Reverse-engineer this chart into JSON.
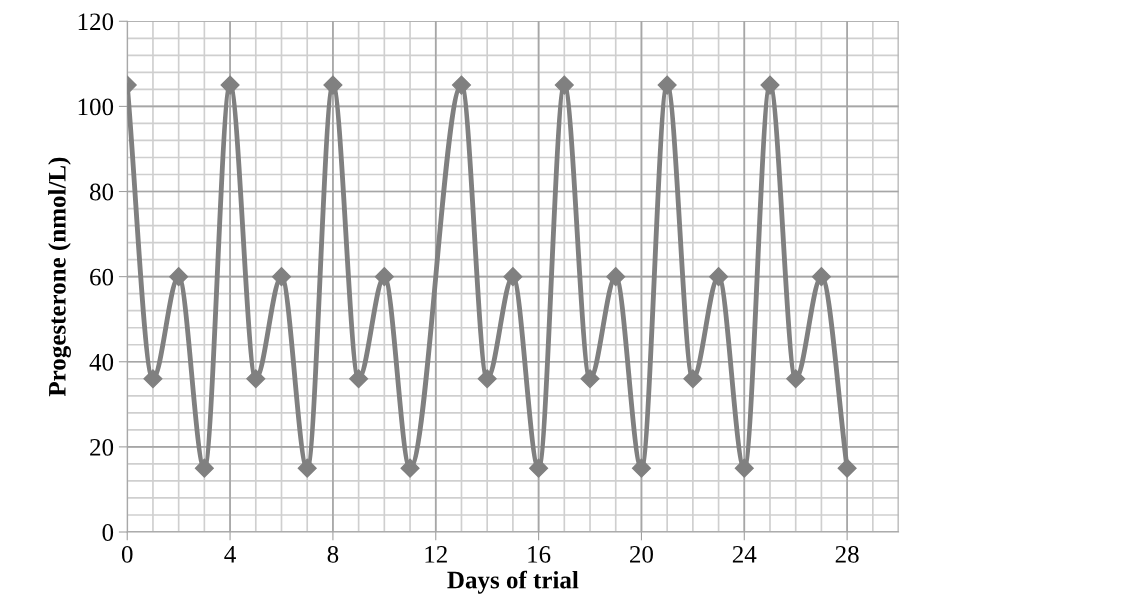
{
  "chart_data": {
    "type": "line",
    "xlabel": "Days of trial",
    "ylabel": "Progesterone (nmol/L)",
    "x": [
      0,
      1,
      2,
      3,
      4,
      5,
      6,
      7,
      8,
      9,
      10,
      11,
      13,
      14,
      15,
      16,
      17,
      18,
      19,
      20,
      21,
      22,
      23,
      24,
      25,
      26,
      27,
      28
    ],
    "series": [
      {
        "color": "#808080",
        "values": [
          105,
          36,
          60,
          15,
          105,
          36,
          60,
          15,
          105,
          36,
          60,
          15,
          105,
          36,
          60,
          15,
          105,
          36,
          60,
          15,
          105,
          36,
          60,
          15,
          105,
          36,
          60,
          15
        ]
      }
    ],
    "xlim": [
      0,
      30
    ],
    "xticks": [
      0,
      4,
      8,
      12,
      16,
      20,
      24,
      28
    ],
    "ylim": [
      0,
      120
    ],
    "yticks": [
      0,
      20,
      40,
      60,
      80,
      100,
      120
    ],
    "grid": true,
    "marker": "diamond",
    "line_style": "solid"
  }
}
